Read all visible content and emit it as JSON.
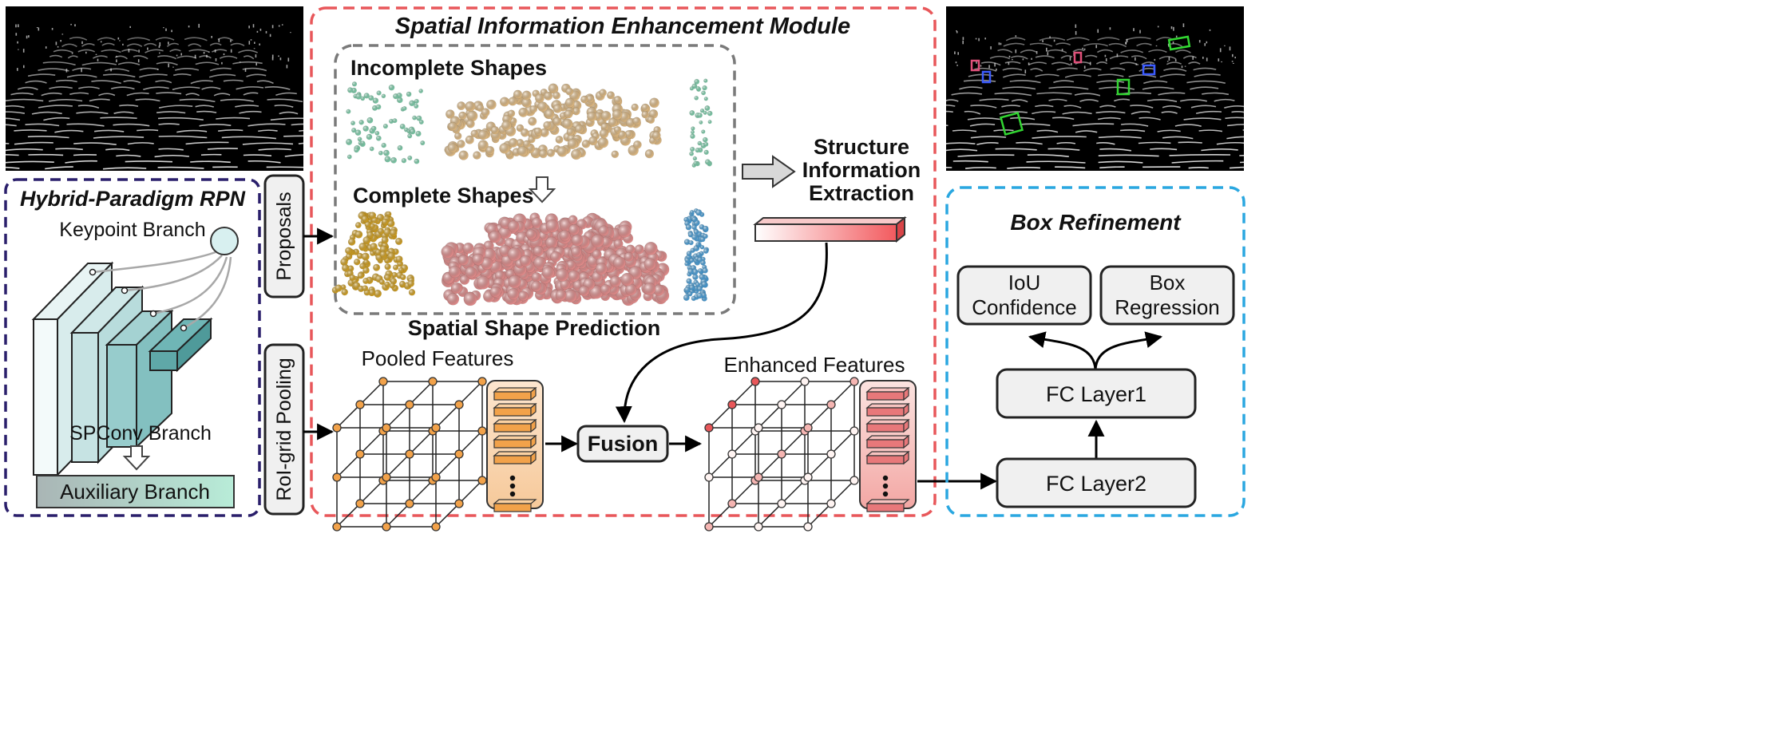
{
  "colors": {
    "rpn_border": "#2a1f6b",
    "rpn_title": "#2a1f6b",
    "module_border": "#e8575a",
    "module_title": "#e8575a",
    "shapes_border": "#7a7a7a",
    "refine_border": "#2aa7e0",
    "refine_title": "#2aa7e0",
    "pooled_color": "#f2a24a",
    "enhanced_color": "#e8575a",
    "box_fill": "#f0f0f0",
    "teal": "#5fa8a8",
    "mint": "#7fd6b0",
    "tan": "#e6bf86",
    "gold": "#d9a520",
    "pink": "#e8908f",
    "blue": "#4aa3df",
    "green_box": "#32d632",
    "blue_box": "#3b5bff",
    "pink_box": "#e0507a"
  },
  "rpn": {
    "title": "Hybrid-Paradigm RPN",
    "keypoint_label": "Keypoint Branch",
    "spconv_label": "SPConv Branch",
    "auxiliary_label": "Auxiliary Branch"
  },
  "side_labels": {
    "proposals": "Proposals",
    "roi_pooling": "RoI-grid Pooling"
  },
  "module": {
    "title": "Spatial Information Enhancement Module",
    "incomplete": "Incomplete Shapes",
    "complete": "Complete Shapes",
    "prediction": "Spatial Shape Prediction",
    "structure_line1": "Structure",
    "structure_line2": "Information",
    "structure_line3": "Extraction",
    "pooled": "Pooled Features",
    "fusion": "Fusion",
    "enhanced": "Enhanced Features"
  },
  "refine": {
    "title": "Box Refinement",
    "iou_line1": "IoU",
    "iou_line2": "Confidence",
    "box_line1": "Box",
    "box_line2": "Regression",
    "fc1": "FC Layer1",
    "fc2": "FC Layer2"
  }
}
